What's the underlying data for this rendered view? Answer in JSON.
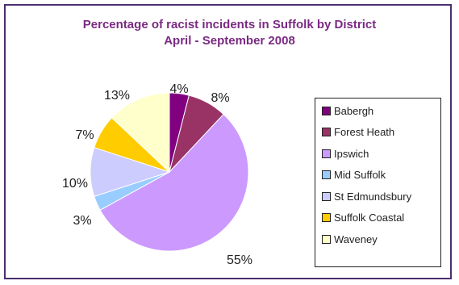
{
  "chart_data": {
    "type": "pie",
    "title": "Percentage of racist incidents in Suffolk by District",
    "subtitle": "April - September 2008",
    "legend_position": "right",
    "slices": [
      {
        "name": "Babergh",
        "value": 4,
        "label": "4%",
        "color": "#800080"
      },
      {
        "name": "Forest Heath",
        "value": 8,
        "label": "8%",
        "color": "#993366"
      },
      {
        "name": "Ipswich",
        "value": 55,
        "label": "55%",
        "color": "#cc99ff"
      },
      {
        "name": "Mid Suffolk",
        "value": 3,
        "label": "3%",
        "color": "#99ccff"
      },
      {
        "name": "St Edmundsbury",
        "value": 10,
        "label": "10%",
        "color": "#ccccff"
      },
      {
        "name": "Suffolk Coastal",
        "value": 7,
        "label": "7%",
        "color": "#ffcc00"
      },
      {
        "name": "Waveney",
        "value": 13,
        "label": "13%",
        "color": "#ffffcc"
      }
    ]
  }
}
